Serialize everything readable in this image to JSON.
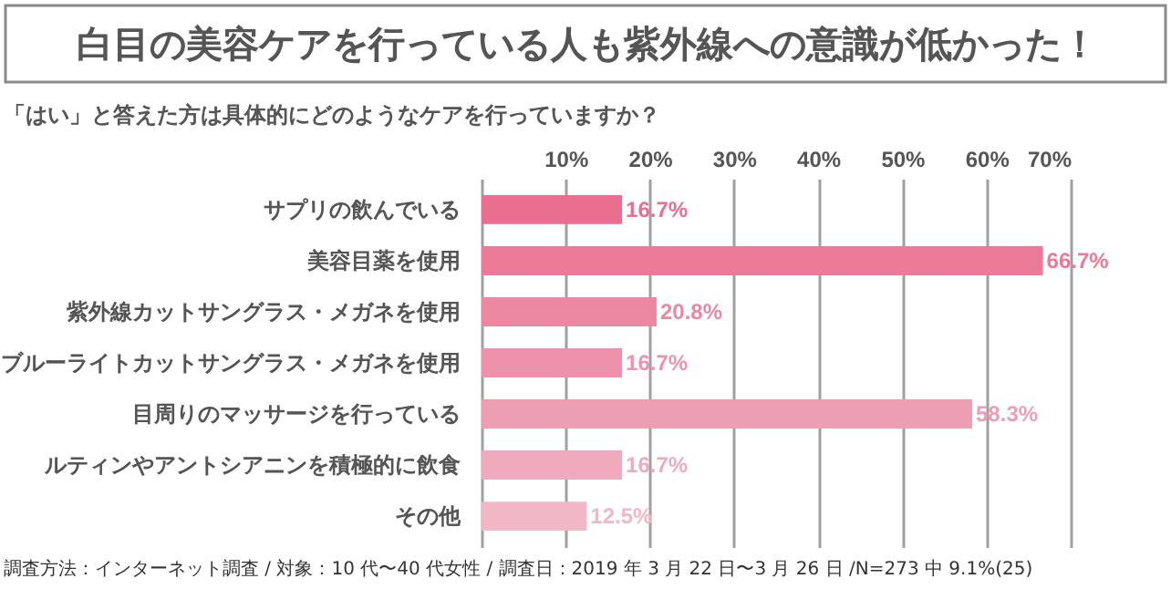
{
  "chart_data": {
    "type": "bar",
    "orientation": "horizontal",
    "title": "白目の美容ケアを行っている人も紫外線への意識が低かった！",
    "subtitle": "「はい」と答えた方は具体的にどのようなケアを行っていますか？",
    "annotations": [
      "調査方法：インターネット調査 / 対象：10 代〜40 代女性 / 調査日：2019 年 3 月 22 日〜3 月 26 日 /N=273 中 9.1%(25)"
    ],
    "categories": [
      "サプリの飲んでいる",
      "美容目薬を使用",
      "紫外線カットサングラス・メガネを使用",
      "ブルーライトカットサングラス・メガネを使用",
      "目周りのマッサージを行っている",
      "ルティンやアントシアニンを積極的に飲食",
      "その他"
    ],
    "values": [
      16.7,
      66.7,
      20.8,
      16.7,
      58.3,
      16.7,
      12.5
    ],
    "value_labels": [
      "16.7%",
      "66.7%",
      "20.8%",
      "16.7%",
      "58.3%",
      "16.7%",
      "12.5%"
    ],
    "colors": [
      "#e96e8f",
      "#eb7a98",
      "#ec87a1",
      "#ed92aa",
      "#ee9eb3",
      "#f0aabd",
      "#f2b7c6"
    ],
    "xlim": [
      0,
      70
    ],
    "xticks": [
      {
        "value": 0,
        "label": null
      },
      {
        "value": 10,
        "label": "10%"
      },
      {
        "value": 20,
        "label": "20%"
      },
      {
        "value": 30,
        "label": "30%"
      },
      {
        "value": 40,
        "label": "40%"
      },
      {
        "value": 50,
        "label": "50%"
      },
      {
        "value": 60,
        "label": "60%"
      },
      {
        "value": 70,
        "label": "70%"
      }
    ],
    "grid": "x"
  }
}
